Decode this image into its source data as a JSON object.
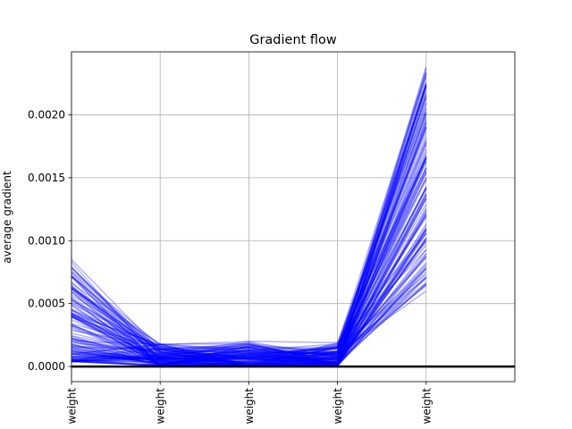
{
  "chart_data": {
    "type": "line",
    "title": "Gradient flow",
    "xlabel": "",
    "ylabel": "average gradient",
    "categories": [
      "weight",
      "weight",
      "weight",
      "weight",
      "weight"
    ],
    "xlim": [
      0,
      5
    ],
    "ylim": [
      -0.00012,
      0.0025
    ],
    "yticks": [
      0.0,
      0.0005,
      0.001,
      0.0015,
      0.002
    ],
    "ytick_labels": [
      "0.0000",
      "0.0005",
      "0.0010",
      "0.0015",
      "0.0020"
    ],
    "grid": true,
    "zero_line": 0.0,
    "line_color": "#0000ff",
    "zero_line_color": "#000000",
    "line_alpha": 0.3,
    "series_count": 120,
    "series_envelope": {
      "min": [
        4e-05,
        5e-06,
        3e-06,
        5e-06,
        0.0006
      ],
      "max": [
        0.00085,
        0.00018,
        0.0002,
        0.00019,
        0.00238
      ]
    },
    "highlighted_series": [
      [
        0.00085,
        0.00013,
        0.00011,
        0.0001,
        0.00238
      ],
      [
        0.00066,
        0.00018,
        0.00012,
        0.00011,
        0.00225
      ],
      [
        0.0006,
        0.0001,
        0.0002,
        0.00019,
        0.00205
      ],
      [
        0.0005,
        0.00015,
        0.0001,
        0.00014,
        0.0019
      ],
      [
        0.00045,
        0.00012,
        8e-05,
        0.00012,
        0.0018
      ],
      [
        0.0004,
        0.00011,
        9e-05,
        0.00015,
        0.0017
      ],
      [
        0.0003,
        9e-05,
        7e-05,
        0.0001,
        0.0006
      ],
      [
        0.0002,
        8e-05,
        6e-05,
        9e-05,
        0.00065
      ],
      [
        0.0001,
        6e-05,
        5e-05,
        8e-05,
        0.0007
      ],
      [
        5e-05,
        4e-05,
        4e-05,
        6e-05,
        0.00075
      ]
    ]
  }
}
